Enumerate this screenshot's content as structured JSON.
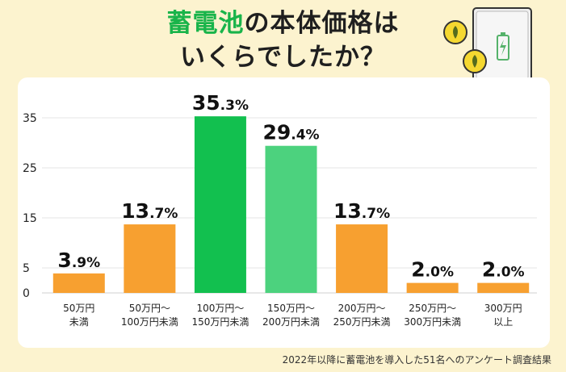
{
  "header": {
    "title_accent": "蓄電池",
    "title_rest": "の本体価格は",
    "title_line2": "いくらでしたか？"
  },
  "footnote": "2022年以降に蓄電池を導入した51名へのアンケート調査結果",
  "icons": [
    "battery-icon",
    "coin-icon"
  ],
  "chart_data": {
    "type": "bar",
    "title": "",
    "xlabel": "",
    "ylabel": "",
    "ylim": [
      0,
      38
    ],
    "yticks": [
      0,
      5,
      15,
      25,
      35
    ],
    "grid": true,
    "categories": [
      [
        "50万円",
        "未満"
      ],
      [
        "50万円〜",
        "100万円未満"
      ],
      [
        "100万円〜",
        "150万円未満"
      ],
      [
        "150万円〜",
        "200万円未満"
      ],
      [
        "200万円〜",
        "250万円未満"
      ],
      [
        "250万円〜",
        "300万円未満"
      ],
      [
        "300万円",
        "以上"
      ]
    ],
    "values": [
      3.9,
      13.7,
      35.3,
      29.4,
      13.7,
      2.0,
      2.0
    ],
    "colors": [
      "#f7a030",
      "#f7a030",
      "#12c04f",
      "#4cd27e",
      "#f7a030",
      "#f7a030",
      "#f7a030"
    ]
  }
}
